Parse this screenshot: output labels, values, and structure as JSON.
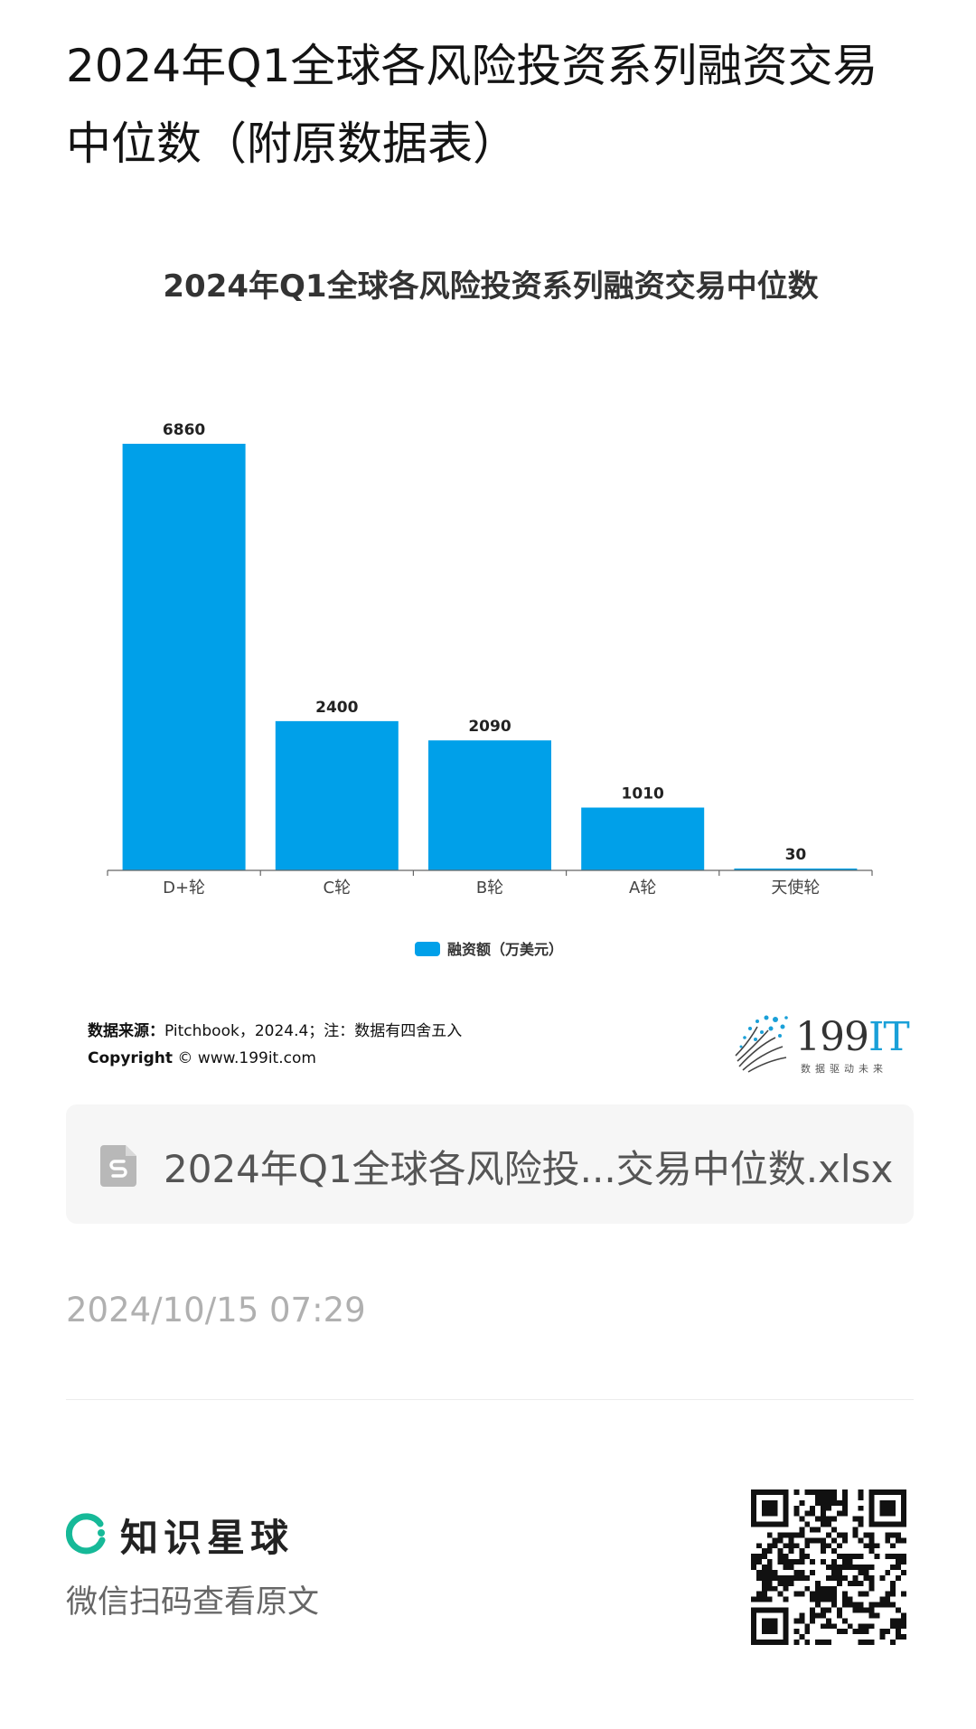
{
  "page": {
    "title": "2024年Q1全球各风险投资系列融资交易中位数（附原数据表）"
  },
  "chart_data": {
    "type": "bar",
    "title": "2024年Q1全球各风险投资系列融资交易中位数",
    "categories": [
      "D+轮",
      "C轮",
      "B轮",
      "A轮",
      "天使轮"
    ],
    "series": [
      {
        "name": "融资额（万美元）",
        "values": [
          6860,
          2400,
          2090,
          1010,
          30
        ]
      }
    ],
    "value_labels": [
      "6860",
      "2400",
      "2090",
      "1010",
      "30"
    ],
    "ylim": [
      0,
      7000
    ],
    "grid": false,
    "legend": "bottom",
    "bar_color": "#00a0e9"
  },
  "source": {
    "label": "数据来源：",
    "text": "Pitchbook，2024.4；注：数据有四舍五入",
    "copyright_label": "Copyright",
    "copyright_text": "© www.199it.com"
  },
  "logo": {
    "main": "199",
    "accent": "IT",
    "slogan": "数据驱动未来"
  },
  "file": {
    "name": "2024年Q1全球各风险投...交易中位数.xlsx",
    "icon": "spreadsheet-file-icon"
  },
  "timestamp": "2024/10/15 07:29",
  "footer": {
    "brand": "知识星球",
    "scan_hint": "微信扫码查看原文",
    "brand_color": "#16b998"
  }
}
